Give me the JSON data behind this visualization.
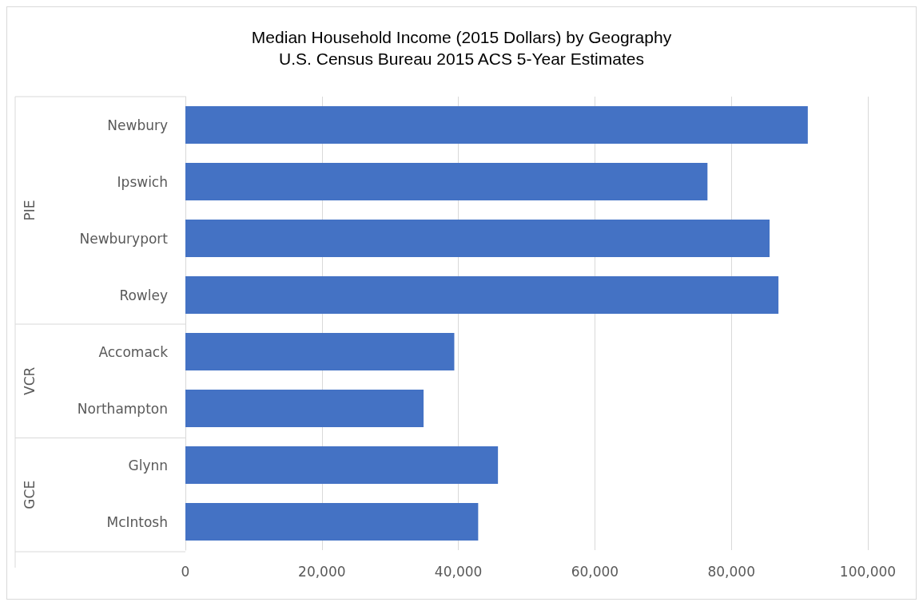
{
  "chart_data": {
    "type": "bar",
    "orientation": "horizontal",
    "title": "Median Household Income (2015 Dollars) by Geography",
    "subtitle": "U.S. Census Bureau 2015 ACS 5-Year Estimates",
    "categories": [
      "Newbury",
      "Ipswich",
      "Newburyport",
      "Rowley",
      "Accomack",
      "Northampton",
      "Glynn",
      "McIntosh"
    ],
    "values": [
      91200,
      76500,
      85600,
      86900,
      39400,
      34900,
      45800,
      42900
    ],
    "color": "#4472c4",
    "xlim": [
      0,
      100000
    ],
    "xticks": [
      {
        "value": 0,
        "label": "0"
      },
      {
        "value": 20000,
        "label": "20,000"
      },
      {
        "value": 40000,
        "label": "40,000"
      },
      {
        "value": 60000,
        "label": "60,000"
      },
      {
        "value": 80000,
        "label": "80,000"
      },
      {
        "value": 100000,
        "label": "100,000"
      }
    ],
    "grid": "x",
    "annotations": [
      "PIE",
      "VCR",
      "GCE"
    ]
  }
}
